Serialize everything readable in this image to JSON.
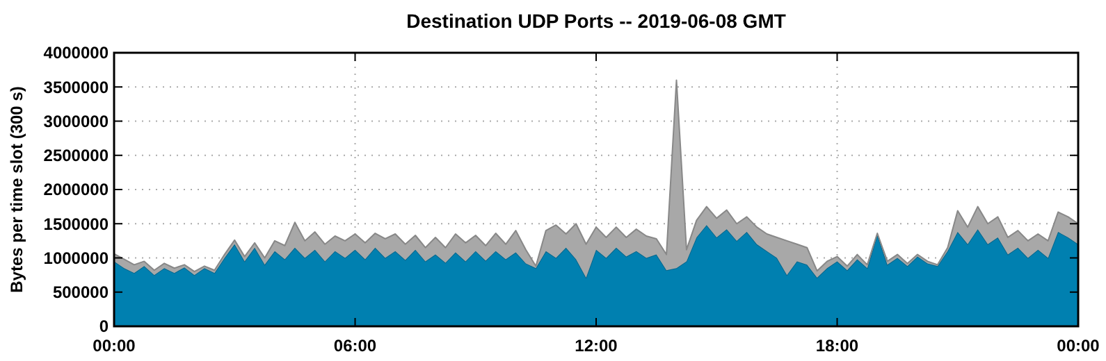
{
  "chart_data": {
    "type": "area",
    "stacked": true,
    "title": "Destination UDP Ports -- 2019-06-08 GMT",
    "ylabel": "Bytes per time slot (300 s)",
    "x": [
      0,
      0.25,
      0.5,
      0.75,
      1,
      1.25,
      1.5,
      1.75,
      2,
      2.25,
      2.5,
      2.75,
      3,
      3.25,
      3.5,
      3.75,
      4,
      4.25,
      4.5,
      4.75,
      5,
      5.25,
      5.5,
      5.75,
      6,
      6.25,
      6.5,
      6.75,
      7,
      7.25,
      7.5,
      7.75,
      8,
      8.25,
      8.5,
      8.75,
      9,
      9.25,
      9.5,
      9.75,
      10,
      10.25,
      10.5,
      10.75,
      11,
      11.25,
      11.5,
      11.75,
      12,
      12.25,
      12.5,
      12.75,
      13,
      13.25,
      13.5,
      13.75,
      14,
      14.25,
      14.5,
      14.75,
      15,
      15.25,
      15.5,
      15.75,
      16,
      16.25,
      16.5,
      16.75,
      17,
      17.25,
      17.5,
      17.75,
      18,
      18.25,
      18.5,
      18.75,
      19,
      19.25,
      19.5,
      19.75,
      20,
      20.25,
      20.5,
      20.75,
      21,
      21.25,
      21.5,
      21.75,
      22,
      22.25,
      22.5,
      22.75,
      23,
      23.25,
      23.5,
      23.75,
      24
    ],
    "series": [
      {
        "color": "#0080b0",
        "values": [
          950000,
          850000,
          780000,
          880000,
          750000,
          850000,
          780000,
          860000,
          750000,
          850000,
          780000,
          1000000,
          1200000,
          950000,
          1150000,
          900000,
          1100000,
          980000,
          1150000,
          1000000,
          1120000,
          950000,
          1100000,
          1000000,
          1120000,
          980000,
          1150000,
          1000000,
          1100000,
          970000,
          1120000,
          950000,
          1050000,
          930000,
          1080000,
          950000,
          1100000,
          960000,
          1100000,
          980000,
          1080000,
          920000,
          850000,
          1100000,
          1000000,
          1150000,
          980000,
          710000,
          1120000,
          1000000,
          1150000,
          1020000,
          1100000,
          1000000,
          1050000,
          820000,
          850000,
          950000,
          1300000,
          1480000,
          1300000,
          1420000,
          1250000,
          1380000,
          1200000,
          1100000,
          1000000,
          750000,
          950000,
          900000,
          710000,
          850000,
          950000,
          820000,
          980000,
          850000,
          1340000,
          900000,
          1000000,
          880000,
          1020000,
          920000,
          880000,
          1100000,
          1380000,
          1200000,
          1420000,
          1200000,
          1300000,
          1050000,
          1150000,
          1000000,
          1120000,
          1000000,
          1380000,
          1300000,
          1200000
        ]
      },
      {
        "color": "#a8a8a8",
        "values": [
          110000,
          130000,
          120000,
          70000,
          70000,
          70000,
          70000,
          40000,
          50000,
          30000,
          40000,
          50000,
          60000,
          70000,
          70000,
          100000,
          150000,
          200000,
          370000,
          250000,
          260000,
          250000,
          220000,
          250000,
          230000,
          240000,
          210000,
          280000,
          250000,
          230000,
          210000,
          200000,
          250000,
          220000,
          270000,
          270000,
          230000,
          220000,
          260000,
          220000,
          320000,
          200000,
          30000,
          300000,
          480000,
          200000,
          520000,
          490000,
          330000,
          300000,
          300000,
          280000,
          320000,
          320000,
          230000,
          230000,
          2750000,
          170000,
          250000,
          270000,
          280000,
          280000,
          250000,
          220000,
          250000,
          250000,
          300000,
          500000,
          250000,
          250000,
          100000,
          100000,
          70000,
          60000,
          70000,
          50000,
          20000,
          50000,
          50000,
          40000,
          30000,
          30000,
          20000,
          50000,
          310000,
          250000,
          330000,
          300000,
          300000,
          250000,
          250000,
          250000,
          230000,
          250000,
          290000,
          300000,
          300000
        ]
      }
    ],
    "xlim": [
      0,
      24
    ],
    "xticks": [
      {
        "value": 0,
        "label": "00:00"
      },
      {
        "value": 6,
        "label": "06:00"
      },
      {
        "value": 12,
        "label": "12:00"
      },
      {
        "value": 18,
        "label": "18:00"
      },
      {
        "value": 24,
        "label": "00:00"
      }
    ],
    "ylim": [
      0,
      4000000
    ],
    "yticks": [
      0,
      500000,
      1000000,
      1500000,
      2000000,
      2500000,
      3000000,
      3500000,
      4000000
    ],
    "grid": true
  }
}
